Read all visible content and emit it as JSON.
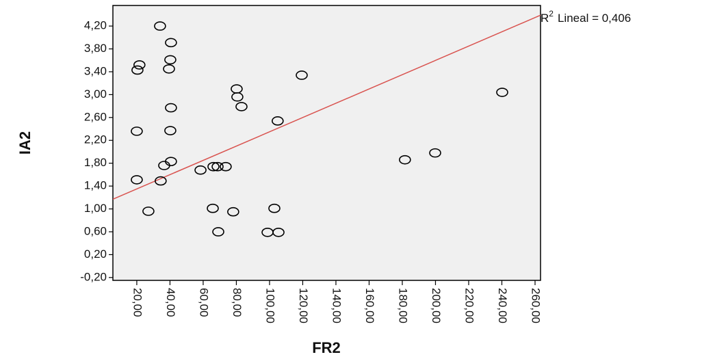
{
  "chart_data": {
    "type": "scatter",
    "x_label": "FR2",
    "y_label": "IA2",
    "annotation": {
      "base": "R",
      "sup": "2",
      "text": "Lineal = 0,406"
    },
    "x": [
      34.0,
      40.6,
      40.2,
      39.4,
      21.6,
      20.4,
      80.2,
      80.6,
      83.1,
      40.6,
      119.4,
      240.2,
      104.9,
      20.0,
      40.2,
      40.6,
      36.5,
      58.4,
      66.2,
      68.7,
      73.6,
      181.6,
      199.8,
      20.0,
      34.4,
      27.0,
      65.8,
      78.1,
      102.9,
      69.1,
      98.8,
      105.4
    ],
    "y": [
      4.2,
      3.91,
      3.61,
      3.45,
      3.52,
      3.43,
      3.1,
      2.96,
      2.79,
      2.77,
      3.34,
      3.04,
      2.54,
      2.36,
      2.37,
      1.83,
      1.76,
      1.68,
      1.74,
      1.74,
      1.74,
      1.86,
      1.98,
      1.51,
      1.49,
      0.96,
      1.01,
      0.95,
      1.01,
      0.6,
      0.59,
      0.59
    ],
    "fit_line": {
      "x": [
        5.6,
        263.3
      ],
      "y": [
        1.17,
        4.39
      ],
      "color": "#d9534f"
    },
    "marker_color": "#000000",
    "plot_background": "#f0f0f0",
    "xlim": [
      5.6,
      263.3
    ],
    "ylim": [
      -0.25,
      4.56
    ],
    "xticks": [
      {
        "value": 20,
        "label": "20,00"
      },
      {
        "value": 40,
        "label": "40,00"
      },
      {
        "value": 60,
        "label": "60,00"
      },
      {
        "value": 80,
        "label": "80,00"
      },
      {
        "value": 100,
        "label": "100,00"
      },
      {
        "value": 120,
        "label": "120,00"
      },
      {
        "value": 140,
        "label": "140,00"
      },
      {
        "value": 160,
        "label": "160,00"
      },
      {
        "value": 180,
        "label": "180,00"
      },
      {
        "value": 200,
        "label": "200,00"
      },
      {
        "value": 220,
        "label": "220,00"
      },
      {
        "value": 240,
        "label": "240,00"
      },
      {
        "value": 260,
        "label": "260,00"
      }
    ],
    "yticks": [
      {
        "value": -0.2,
        "label": "-0,20"
      },
      {
        "value": 0.2,
        "label": "0,20"
      },
      {
        "value": 0.6,
        "label": "0,60"
      },
      {
        "value": 1.0,
        "label": "1,00"
      },
      {
        "value": 1.4,
        "label": "1,40"
      },
      {
        "value": 1.8,
        "label": "1,80"
      },
      {
        "value": 2.2,
        "label": "2,20"
      },
      {
        "value": 2.6,
        "label": "2,60"
      },
      {
        "value": 3.0,
        "label": "3,00"
      },
      {
        "value": 3.4,
        "label": "3,40"
      },
      {
        "value": 3.8,
        "label": "3,80"
      },
      {
        "value": 4.2,
        "label": "4,20"
      }
    ]
  }
}
